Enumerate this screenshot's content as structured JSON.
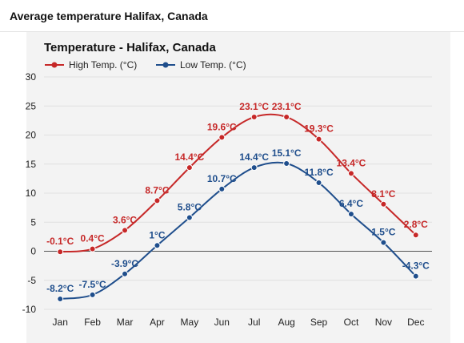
{
  "page": {
    "title": "Average temperature Halifax, Canada"
  },
  "colors": {
    "high": "#c62828",
    "low": "#1f4e8c",
    "grid": "#e0e0e0",
    "zero": "#555555"
  },
  "chart_data": {
    "type": "line",
    "title": "Temperature - Halifax, Canada",
    "categories": [
      "Jan",
      "Feb",
      "Mar",
      "Apr",
      "May",
      "Jun",
      "Jul",
      "Aug",
      "Sep",
      "Oct",
      "Nov",
      "Dec"
    ],
    "series": [
      {
        "name": "High Temp. (°C)",
        "values": [
          -0.1,
          0.4,
          3.6,
          8.7,
          14.4,
          19.6,
          23.1,
          23.1,
          19.3,
          13.4,
          8.1,
          2.8
        ],
        "labels": [
          "-0.1°C",
          "0.4°C",
          "3.6°C",
          "8.7°C",
          "14.4°C",
          "19.6°C",
          "23.1°C",
          "23.1°C",
          "19.3°C",
          "13.4°C",
          "8.1°C",
          "2.8°C"
        ]
      },
      {
        "name": "Low Temp. (°C)",
        "values": [
          -8.2,
          -7.5,
          -3.9,
          1,
          5.8,
          10.7,
          14.4,
          15.1,
          11.8,
          6.4,
          1.5,
          -4.3
        ],
        "labels": [
          "-8.2°C",
          "-7.5°C",
          "-3.9°C",
          "1°C",
          "5.8°C",
          "10.7°C",
          "14.4°C",
          "15.1°C",
          "11.8°C",
          "6.4°C",
          "1.5°C",
          "-4.3°C"
        ]
      }
    ],
    "yticks": [
      "30",
      "25",
      "20",
      "15",
      "10",
      "5",
      "0",
      "-5",
      "-10"
    ],
    "ylim": [
      -10,
      30
    ],
    "grid": true,
    "legend": "top-left"
  }
}
